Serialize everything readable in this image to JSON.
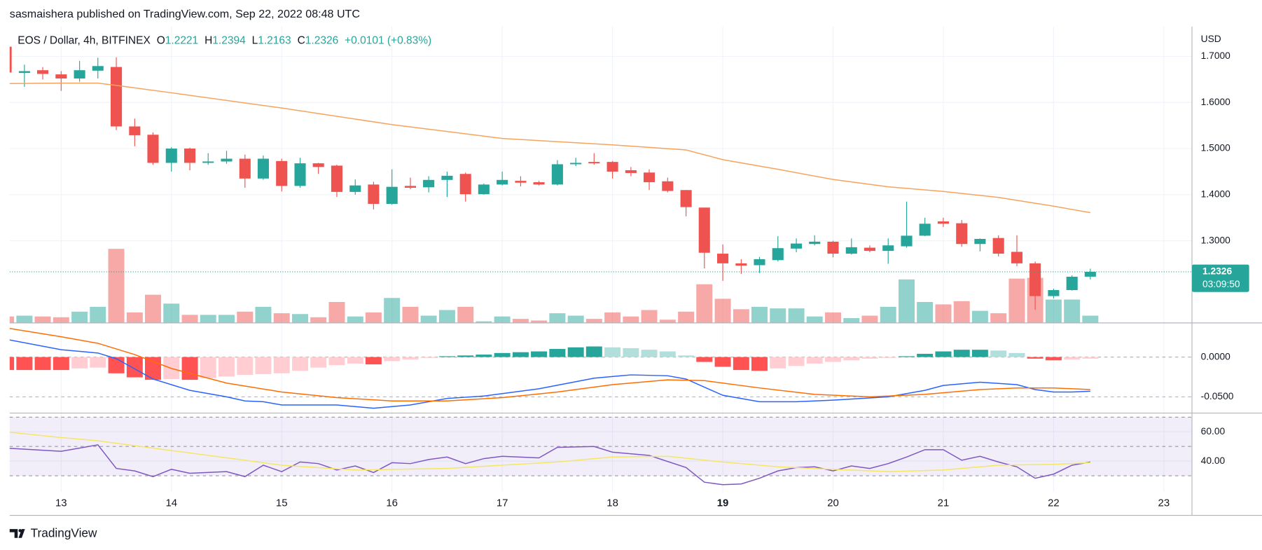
{
  "header": "sasmaishera published on TradingView.com, Sep 22, 2022 08:48 UTC",
  "footer": "TradingView",
  "chart_data": [
    {
      "type": "candlestick",
      "title": "EOS / Dollar, 4h, BITFINEX",
      "legend_labels": [
        "O",
        "H",
        "L",
        "C"
      ],
      "change_label": "+0.0101 (+0.83%)",
      "y_axis_label": "USD",
      "countdown": "03:09:50",
      "up_color": "#26a69a",
      "down_color": "#ef5350",
      "volume_up_color": "rgba(38,166,154,0.5)",
      "volume_down_color": "rgba(239,83,80,0.5)",
      "grid": true,
      "xlim": [
        12.533,
        23.255
      ],
      "xticks": [
        13,
        14,
        15,
        16,
        17,
        18,
        19,
        20,
        21,
        22,
        23
      ],
      "bold_xticks": [
        19
      ],
      "ylim": [
        1.1218,
        1.7646
      ],
      "yticks": [
        {
          "value": 1.7,
          "label": "1.7000"
        },
        {
          "value": 1.6,
          "label": "1.6000"
        },
        {
          "value": 1.5,
          "label": "1.5000"
        },
        {
          "value": 1.4,
          "label": "1.4000"
        },
        {
          "value": 1.3,
          "label": "1.3000"
        }
      ],
      "x": [
        12.5,
        12.667,
        12.833,
        13,
        13.167,
        13.333,
        13.5,
        13.667,
        13.833,
        14,
        14.167,
        14.333,
        14.5,
        14.667,
        14.833,
        15,
        15.167,
        15.333,
        15.5,
        15.667,
        15.833,
        16,
        16.167,
        16.333,
        16.5,
        16.667,
        16.833,
        17,
        17.167,
        17.333,
        17.5,
        17.667,
        17.833,
        18,
        18.167,
        18.333,
        18.5,
        18.667,
        18.833,
        19,
        19.167,
        19.333,
        19.5,
        19.667,
        19.833,
        20,
        20.167,
        20.333,
        20.5,
        20.667,
        20.833,
        21,
        21.167,
        21.333,
        21.5,
        21.667,
        21.833,
        22,
        22.167,
        22.333
      ],
      "open": [
        1.721,
        1.664,
        1.67,
        1.661,
        1.652,
        1.669,
        1.677,
        1.548,
        1.53,
        1.469,
        1.5,
        1.469,
        1.472,
        1.478,
        1.435,
        1.473,
        1.419,
        1.468,
        1.463,
        1.406,
        1.422,
        1.38,
        1.419,
        1.416,
        1.432,
        1.445,
        1.401,
        1.422,
        1.43,
        1.427,
        1.422,
        1.466,
        1.471,
        1.471,
        1.453,
        1.448,
        1.429,
        1.41,
        1.372,
        1.272,
        1.251,
        1.247,
        1.258,
        1.283,
        1.293,
        1.298,
        1.272,
        1.285,
        1.278,
        1.288,
        1.311,
        1.342,
        1.338,
        1.293,
        1.306,
        1.276,
        1.251,
        1.18,
        1.193,
        1.2221
      ],
      "high": [
        1.725,
        1.682,
        1.677,
        1.668,
        1.69,
        1.697,
        1.698,
        1.565,
        1.535,
        1.503,
        1.502,
        1.49,
        1.495,
        1.487,
        1.485,
        1.478,
        1.48,
        1.469,
        1.465,
        1.433,
        1.428,
        1.455,
        1.437,
        1.44,
        1.45,
        1.448,
        1.424,
        1.45,
        1.44,
        1.43,
        1.475,
        1.48,
        1.49,
        1.473,
        1.46,
        1.455,
        1.437,
        1.41,
        1.372,
        1.292,
        1.26,
        1.265,
        1.31,
        1.305,
        1.312,
        1.3,
        1.305,
        1.29,
        1.305,
        1.385,
        1.35,
        1.35,
        1.345,
        1.305,
        1.312,
        1.312,
        1.255,
        1.196,
        1.225,
        1.2394
      ],
      "low": [
        1.665,
        1.634,
        1.65,
        1.625,
        1.645,
        1.652,
        1.54,
        1.505,
        1.465,
        1.45,
        1.453,
        1.465,
        1.467,
        1.415,
        1.432,
        1.407,
        1.415,
        1.445,
        1.395,
        1.4,
        1.368,
        1.378,
        1.412,
        1.405,
        1.395,
        1.385,
        1.4,
        1.42,
        1.418,
        1.42,
        1.42,
        1.462,
        1.465,
        1.435,
        1.44,
        1.41,
        1.405,
        1.353,
        1.24,
        1.213,
        1.228,
        1.23,
        1.255,
        1.275,
        1.29,
        1.264,
        1.27,
        1.275,
        1.25,
        1.285,
        1.31,
        1.33,
        1.287,
        1.277,
        1.266,
        1.245,
        1.15,
        1.175,
        1.192,
        1.2163
      ],
      "close": [
        1.665,
        1.668,
        1.662,
        1.652,
        1.67,
        1.679,
        1.548,
        1.529,
        1.469,
        1.5,
        1.469,
        1.472,
        1.478,
        1.435,
        1.478,
        1.419,
        1.468,
        1.46,
        1.406,
        1.42,
        1.38,
        1.417,
        1.415,
        1.432,
        1.441,
        1.401,
        1.422,
        1.432,
        1.426,
        1.422,
        1.466,
        1.469,
        1.468,
        1.45,
        1.447,
        1.427,
        1.408,
        1.373,
        1.274,
        1.251,
        1.246,
        1.26,
        1.284,
        1.294,
        1.298,
        1.272,
        1.286,
        1.278,
        1.29,
        1.311,
        1.337,
        1.337,
        1.293,
        1.304,
        1.272,
        1.251,
        1.18,
        1.193,
        1.222,
        1.2326
      ],
      "volume": [
        8,
        9,
        8,
        7,
        14,
        20,
        92,
        13,
        35,
        24,
        10,
        10,
        10,
        14,
        20,
        12,
        11,
        7,
        26,
        8,
        13,
        31,
        20,
        9,
        16,
        20,
        2,
        8,
        5,
        3,
        12,
        9,
        5,
        13,
        8,
        16,
        4,
        14,
        48,
        30,
        17,
        20,
        18,
        18,
        8,
        13,
        6,
        9,
        20,
        54,
        26,
        23,
        27,
        15,
        12,
        55,
        56,
        29,
        29,
        9
      ],
      "overlay": {
        "color": "#f7a35c",
        "x": [
          12.5,
          13,
          13.333,
          13.5,
          14,
          15,
          16,
          17,
          18,
          18.667,
          19,
          19.5,
          20,
          20.5,
          21,
          21.5,
          22,
          22.333
        ],
        "values": [
          1.641,
          1.642,
          1.642,
          1.637,
          1.621,
          1.588,
          1.552,
          1.522,
          1.508,
          1.497,
          1.476,
          1.455,
          1.433,
          1.417,
          1.407,
          1.394,
          1.375,
          1.361
        ]
      }
    },
    {
      "type": "macd",
      "ylim": [
        -0.0704,
        0.0429
      ],
      "yticks": [
        {
          "value": 0,
          "label": "0.0000"
        },
        {
          "value": -0.05,
          "label": "-0.0500"
        }
      ],
      "histogram_colors": {
        "up_rising": "#26a69a",
        "up_falling": "#b2dfdb",
        "down_falling": "#ff5252",
        "down_rising": "#ffcdd2"
      },
      "histogram": [
        -0.0163,
        -0.0163,
        -0.0163,
        -0.0163,
        -0.0143,
        -0.0133,
        -0.0204,
        -0.0255,
        -0.0286,
        -0.0276,
        -0.0286,
        -0.0265,
        -0.0245,
        -0.0224,
        -0.0214,
        -0.0204,
        -0.0173,
        -0.0133,
        -0.0102,
        -0.0082,
        -0.0092,
        -0.0051,
        -0.0031,
        -0.001,
        0.001,
        0.002,
        0.0031,
        0.0051,
        0.0061,
        0.0071,
        0.0102,
        0.0122,
        0.0133,
        0.0122,
        0.0112,
        0.0092,
        0.0071,
        0.002,
        -0.0061,
        -0.0122,
        -0.0163,
        -0.0173,
        -0.0143,
        -0.0112,
        -0.0082,
        -0.0061,
        -0.0041,
        -0.002,
        -0.001,
        0.001,
        0.0041,
        0.0071,
        0.0092,
        0.0092,
        0.0082,
        0.0051,
        -0.002,
        -0.0041,
        -0.0031,
        -0.002
      ],
      "series": [
        {
          "color": "#2962ff",
          "x": [
            12.5,
            13,
            13.333,
            13.5,
            13.833,
            14.167,
            14.5,
            14.667,
            14.833,
            15,
            15.5,
            15.833,
            16.167,
            16.5,
            16.833,
            17.333,
            17.833,
            18.167,
            18.5,
            18.667,
            18.833,
            19,
            19.333,
            19.667,
            20,
            20.5,
            20.833,
            21,
            21.333,
            21.667,
            21.833,
            22,
            22.167,
            22.333
          ],
          "values": [
            0.0224,
            0.0092,
            0.0051,
            -0.002,
            -0.0276,
            -0.0418,
            -0.05,
            -0.0551,
            -0.0561,
            -0.0602,
            -0.0602,
            -0.0643,
            -0.0602,
            -0.052,
            -0.049,
            -0.0398,
            -0.0265,
            -0.0224,
            -0.0235,
            -0.0276,
            -0.0378,
            -0.048,
            -0.0561,
            -0.0561,
            -0.0541,
            -0.05,
            -0.0418,
            -0.0357,
            -0.0316,
            -0.0347,
            -0.0408,
            -0.0439,
            -0.0439,
            -0.0429
          ]
        },
        {
          "color": "#ff6d00",
          "x": [
            12.5,
            13,
            13.333,
            13.667,
            14,
            14.5,
            15,
            15.5,
            16,
            16.5,
            17,
            17.5,
            18,
            18.5,
            18.833,
            19.333,
            19.833,
            20.333,
            20.833,
            21.333,
            21.667,
            22,
            22.333
          ],
          "values": [
            0.0367,
            0.0255,
            0.0173,
            0.0031,
            -0.0143,
            -0.0327,
            -0.0439,
            -0.051,
            -0.0551,
            -0.0551,
            -0.051,
            -0.0439,
            -0.0347,
            -0.0286,
            -0.0296,
            -0.0388,
            -0.0469,
            -0.05,
            -0.0469,
            -0.0408,
            -0.0388,
            -0.0388,
            -0.0408
          ]
        }
      ]
    },
    {
      "type": "rsi",
      "ylim": [
        18.9,
        72.8
      ],
      "yticks": [
        {
          "value": 60,
          "label": "60.00"
        },
        {
          "value": 40,
          "label": "40.00"
        }
      ],
      "levels": [
        70,
        50,
        30
      ],
      "band_color": "rgba(126,87,194,0.1)",
      "series": [
        {
          "color": "#7e57c2",
          "x": [
            12.5,
            13,
            13.333,
            13.5,
            13.667,
            13.833,
            14,
            14.167,
            14.5,
            14.667,
            14.833,
            15,
            15.167,
            15.333,
            15.5,
            15.667,
            15.833,
            16,
            16.167,
            16.333,
            16.5,
            16.667,
            16.833,
            17,
            17.333,
            17.5,
            17.833,
            18,
            18.333,
            18.667,
            18.833,
            19,
            19.167,
            19.333,
            19.5,
            19.667,
            19.833,
            20,
            20.167,
            20.333,
            20.5,
            20.667,
            20.833,
            21,
            21.167,
            21.333,
            21.5,
            21.667,
            21.833,
            22,
            22.167,
            22.333
          ],
          "values": [
            48.9,
            46.7,
            51.1,
            35,
            33.3,
            29.4,
            34.4,
            31.7,
            32.8,
            29.4,
            37.2,
            32.8,
            39.4,
            38.3,
            33.9,
            36.7,
            32.2,
            38.9,
            38.3,
            41.1,
            42.8,
            38.3,
            41.7,
            43.3,
            42.2,
            49.4,
            50,
            46.1,
            43.9,
            35.6,
            25.6,
            23.9,
            24.4,
            28.3,
            33.3,
            35.6,
            36.1,
            33.3,
            36.7,
            35,
            38.3,
            42.8,
            47.8,
            47.8,
            40.6,
            43.3,
            39.4,
            36.1,
            28.3,
            31.1,
            37.2,
            39.4
          ]
        },
        {
          "color": "#f5e663",
          "x": [
            12.5,
            13,
            13.333,
            14,
            14.667,
            15,
            15.667,
            16.5,
            17.5,
            18,
            18.5,
            19,
            19.5,
            20,
            20.5,
            21,
            21.5,
            22,
            22.333
          ],
          "values": [
            60,
            56.1,
            53.9,
            47.2,
            40.6,
            37.2,
            33.9,
            35,
            39.4,
            42.8,
            43.3,
            39.4,
            36.1,
            34.4,
            32.8,
            33.9,
            37.2,
            37.8,
            38.9
          ]
        }
      ]
    }
  ]
}
